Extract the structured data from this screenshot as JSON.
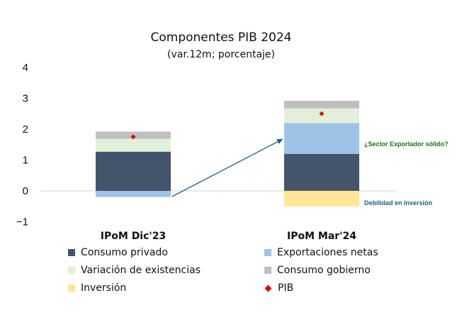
{
  "chart_data": {
    "type": "bar",
    "stacked": true,
    "title": "Componentes PIB 2024",
    "subtitle": "(var.12m; porcentaje)",
    "categories": [
      "IPoM Dic'23",
      "IPoM Mar'24"
    ],
    "ylim": [
      -1,
      4
    ],
    "yticks": [
      "4",
      "3",
      "2",
      "1",
      "0",
      "−1"
    ],
    "grid": false,
    "legend_position": "bottom",
    "series": [
      {
        "name": "Consumo privado",
        "values": [
          1.27,
          1.2
        ],
        "color": "#44546A"
      },
      {
        "name": "Exportaciones netas",
        "values": [
          -0.2,
          1.0
        ],
        "color": "#9DC3E6"
      },
      {
        "name": "Variación de existencias",
        "values": [
          0.42,
          0.47
        ],
        "color": "#E2F0D9"
      },
      {
        "name": "Consumo gobierno",
        "values": [
          0.23,
          0.25
        ],
        "color": "#BFBFBF"
      },
      {
        "name": "Inversión",
        "values": [
          0.0,
          -0.5
        ],
        "color": "#FFE699"
      },
      {
        "name": "PIB",
        "type": "marker",
        "values": [
          1.75,
          2.5
        ],
        "color": "#E00000"
      }
    ],
    "annotations": [
      {
        "text": "¿Sector Exportador sólido?",
        "color": "#1E6B24"
      },
      {
        "text": "Debilidad en Inversión",
        "color": "#1F5C85"
      }
    ]
  }
}
